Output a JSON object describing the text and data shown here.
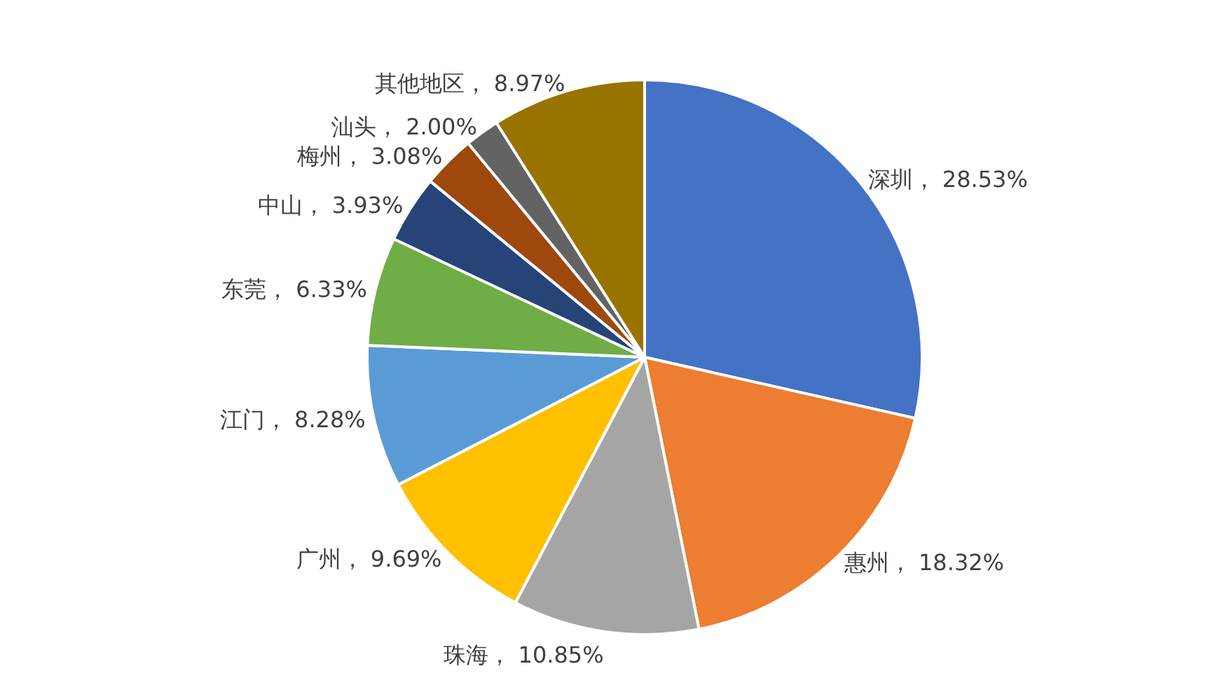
{
  "chart_data": {
    "type": "pie",
    "categories": [
      "深圳",
      "惠州",
      "珠海",
      "广州",
      "江门",
      "东莞",
      "中山",
      "梅州",
      "汕头",
      "其他地区"
    ],
    "values": [
      28.53,
      18.32,
      10.85,
      9.69,
      8.28,
      6.33,
      3.93,
      3.08,
      2.0,
      8.97
    ],
    "colors": [
      "#4472c4",
      "#ed7d31",
      "#a5a5a5",
      "#ffc000",
      "#5b9bd5",
      "#70ad47",
      "#264478",
      "#9e480e",
      "#636363",
      "#997300"
    ],
    "value_labels": [
      "， 28.53%",
      "， 18.32%",
      "， 10.85%",
      "， 9.69%",
      "， 8.28%",
      "， 6.33%",
      "， 3.93%",
      "， 3.08%",
      "， 2.00%",
      "， 8.97%"
    ]
  }
}
